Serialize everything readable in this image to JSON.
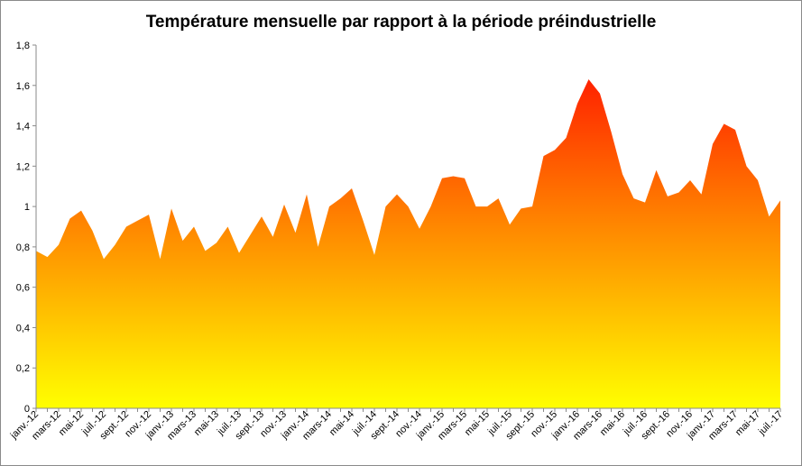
{
  "chart_data": {
    "type": "area",
    "title": "Température mensuelle par rapport à la période préindustrielle",
    "xlabel": "",
    "ylabel": "",
    "ylim": [
      0,
      1.8
    ],
    "yticks": [
      "0",
      "0,2",
      "0,4",
      "0,6",
      "0,8",
      "1",
      "1,2",
      "1,4",
      "1,6",
      "1,8"
    ],
    "grid": false,
    "legend": "none",
    "fill_gradient": {
      "top": "#ff2200",
      "bottom": "#ffff00"
    },
    "categories": [
      "janv.-12",
      "févr.-12",
      "mars-12",
      "avr.-12",
      "mai-12",
      "juin-12",
      "juil.-12",
      "août-12",
      "sept.-12",
      "oct.-12",
      "nov.-12",
      "déc.-12",
      "janv.-13",
      "févr.-13",
      "mars-13",
      "avr.-13",
      "mai-13",
      "juin-13",
      "juil.-13",
      "août-13",
      "sept.-13",
      "oct.-13",
      "nov.-13",
      "déc.-13",
      "janv.-14",
      "févr.-14",
      "mars-14",
      "avr.-14",
      "mai-14",
      "juin-14",
      "juil.-14",
      "août-14",
      "sept.-14",
      "oct.-14",
      "nov.-14",
      "déc.-14",
      "janv.-15",
      "févr.-15",
      "mars-15",
      "avr.-15",
      "mai-15",
      "juin-15",
      "juil.-15",
      "août-15",
      "sept.-15",
      "oct.-15",
      "nov.-15",
      "déc.-15",
      "janv.-16",
      "févr.-16",
      "mars-16",
      "avr.-16",
      "mai-16",
      "juin-16",
      "juil.-16",
      "août-16",
      "sept.-16",
      "oct.-16",
      "nov.-16",
      "déc.-16",
      "janv.-17",
      "févr.-17",
      "mars-17",
      "avr.-17",
      "mai-17",
      "juin-17",
      "juil.-17"
    ],
    "tick_labels": [
      "janv.-12",
      "mars-12",
      "mai-12",
      "juil.-12",
      "sept.-12",
      "nov.-12",
      "janv.-13",
      "mars-13",
      "mai-13",
      "juil.-13",
      "sept.-13",
      "nov.-13",
      "janv.-14",
      "mars-14",
      "mai-14",
      "juil.-14",
      "sept.-14",
      "nov.-14",
      "janv.-15",
      "mars-15",
      "mai-15",
      "juil.-15",
      "sept.-15",
      "nov.-15",
      "janv.-16",
      "mars-16",
      "mai-16",
      "juil.-16",
      "sept.-16",
      "nov.-16",
      "janv.-17",
      "mars-17",
      "mai-17",
      "juil.-17"
    ],
    "values": [
      0.78,
      0.75,
      0.81,
      0.94,
      0.98,
      0.88,
      0.74,
      0.81,
      0.9,
      0.93,
      0.96,
      0.74,
      0.99,
      0.83,
      0.9,
      0.78,
      0.82,
      0.9,
      0.77,
      0.86,
      0.95,
      0.85,
      1.01,
      0.87,
      1.06,
      0.8,
      1.0,
      1.04,
      1.09,
      0.93,
      0.76,
      1.0,
      1.06,
      1.0,
      0.89,
      1.0,
      1.14,
      1.15,
      1.14,
      1.0,
      1.0,
      1.04,
      0.91,
      0.99,
      1.0,
      1.25,
      1.28,
      1.34,
      1.51,
      1.63,
      1.56,
      1.37,
      1.16,
      1.04,
      1.02,
      1.18,
      1.05,
      1.07,
      1.13,
      1.06,
      1.31,
      1.41,
      1.38,
      1.2,
      1.13,
      0.95,
      1.03
    ]
  }
}
